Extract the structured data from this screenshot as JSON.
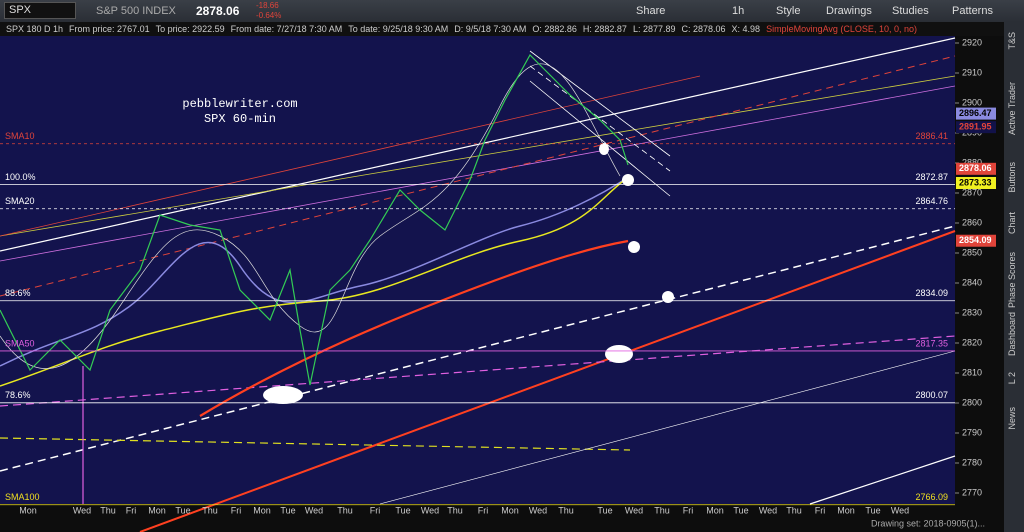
{
  "toolbar": {
    "symbol": "SPX",
    "index_name": "S&P 500 INDEX",
    "price": "2878.06",
    "change": "-18.66",
    "change_pct": "-0.64%",
    "buttons": [
      "Share",
      "1h",
      "Style",
      "Drawings",
      "Studies",
      "Patterns"
    ]
  },
  "info_bar": [
    "SPX 180 D 1h",
    "From price: 2767.01",
    "To price: 2922.59",
    "From date: 7/27/18 7:30 AM",
    "To date: 9/25/18 9:30 AM",
    "D: 9/5/18 7:30 AM",
    "O: 2882.86",
    "H: 2882.87",
    "L: 2877.89",
    "C: 2878.06",
    "X: 4.98",
    "SimpleMovingAvg (CLOSE, 10, 0, no)"
  ],
  "annotation": [
    "pebblewriter.com",
    "SPX 60-min"
  ],
  "levels": [
    {
      "left_label": "SMA10",
      "price_label": "2886.41",
      "color": "#e0443a"
    },
    {
      "left_label": "100.0%",
      "price_label": "2872.87",
      "color": "#ffffff"
    },
    {
      "left_label": "SMA20",
      "price_label": "2864.76",
      "color": "#ffffff"
    },
    {
      "left_label": "88.6%",
      "price_label": "2834.09",
      "color": "#ffffff"
    },
    {
      "left_label": "SMA50",
      "price_label": "2817.35",
      "color": "#e060e0"
    },
    {
      "left_label": "78.6%",
      "price_label": "2800.07",
      "color": "#ffffff"
    },
    {
      "left_label": "SMA100",
      "price_label": "2766.09",
      "color": "#f0e020"
    }
  ],
  "price_axis": [
    "2920",
    "2910",
    "2900",
    "2890",
    "2880",
    "2870",
    "2860",
    "2850",
    "2840",
    "2830",
    "2820",
    "2810",
    "2800",
    "2790",
    "2780",
    "2770"
  ],
  "price_tags": [
    {
      "label": "2896.47",
      "bg": "#8a8ae0",
      "fg": "#000000"
    },
    {
      "label": "2891.95",
      "bg": "#12124a",
      "fg": "#e0443a"
    },
    {
      "label": "2878.06",
      "bg": "#e0443a",
      "fg": "#ffffff"
    },
    {
      "label": "2873.33",
      "bg": "#f0f020",
      "fg": "#000000"
    },
    {
      "label": "2854.09",
      "bg": "#e0443a",
      "fg": "#ffffff"
    }
  ],
  "time_axis": [
    "Mon",
    "Wed",
    "Thu",
    "Fri",
    "Mon",
    "Tue",
    "Thu",
    "Fri",
    "Mon",
    "Tue",
    "Wed",
    "Thu",
    "Fri",
    "Tue",
    "Wed",
    "Thu",
    "Fri",
    "Mon",
    "Wed",
    "Thu",
    "Tue",
    "Wed",
    "Thu",
    "Fri",
    "Mon",
    "Tue",
    "Wed",
    "Thu",
    "Fri",
    "Mon",
    "Tue",
    "Wed"
  ],
  "drawing_set": "Drawing set: 2018-0905(1)...",
  "sidebar": [
    "T&S",
    "Active Trader",
    "Buttons",
    "Chart",
    "Phase Scores",
    "Dashboard",
    "L 2",
    "News"
  ]
}
